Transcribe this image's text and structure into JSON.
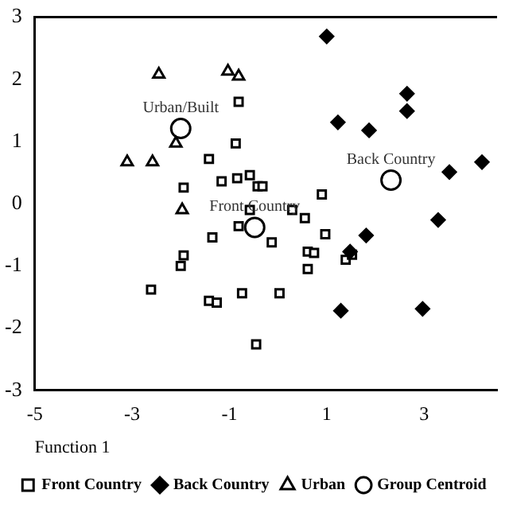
{
  "chart_data": {
    "type": "scatter",
    "xlabel": "Function 1",
    "xlim": [
      -5,
      4.5
    ],
    "xticks": [
      -5,
      -3,
      -1,
      1,
      3
    ],
    "ylim": [
      -3,
      3
    ],
    "yticks": [
      -3,
      -2,
      -1,
      0,
      1,
      2,
      3
    ],
    "grid": false,
    "legend": "bottom",
    "series": [
      {
        "name": "Front Country",
        "color": "#000000",
        "marker": "square",
        "x": [
          -1.42,
          -0.87,
          -0.81,
          -1.16,
          -0.84,
          -1.94,
          -0.81,
          -1.35,
          -1.94,
          -2.0,
          -2.61,
          -1.42,
          -1.26,
          -0.74,
          -0.58,
          -0.42,
          -0.32,
          0.9,
          -0.58,
          0.29,
          0.55,
          -0.13,
          0.97,
          0.61,
          0.74,
          1.39,
          1.52,
          0.61,
          0.03,
          -0.45
        ],
        "values": [
          0.72,
          0.97,
          1.64,
          0.36,
          0.41,
          0.26,
          -0.36,
          -0.54,
          -0.83,
          -1.0,
          -1.38,
          -1.56,
          -1.59,
          -1.44,
          0.46,
          0.28,
          0.28,
          0.15,
          -0.1,
          -0.1,
          -0.23,
          -0.62,
          -0.49,
          -0.77,
          -0.79,
          -0.9,
          -0.82,
          -1.05,
          -1.44,
          -2.26
        ]
      },
      {
        "name": "Back Country",
        "color": "#000000",
        "marker": "diamond",
        "x": [
          1.0,
          2.65,
          2.65,
          1.23,
          1.87,
          3.52,
          4.19,
          3.29,
          1.81,
          1.48,
          1.29,
          2.97
        ],
        "values": [
          2.69,
          1.77,
          1.49,
          1.31,
          1.18,
          0.51,
          0.67,
          -0.26,
          -0.51,
          -0.77,
          -1.72,
          -1.69
        ]
      },
      {
        "name": "Urban",
        "color": "#000000",
        "marker": "triangle",
        "x": [
          -2.45,
          -1.03,
          -0.81,
          -3.1,
          -2.58,
          -2.1,
          -1.97
        ],
        "values": [
          2.08,
          2.13,
          2.05,
          0.67,
          0.67,
          0.97,
          -0.1
        ]
      },
      {
        "name": "Group Centroid",
        "color": "#000000",
        "marker": "circle",
        "x": [
          -2.0,
          -0.48,
          2.32
        ],
        "values": [
          1.21,
          -0.38,
          0.38
        ]
      }
    ],
    "annotations": [
      {
        "text": "Urban/Built",
        "x": -2.0,
        "y": 1.21
      },
      {
        "text": "Front Country",
        "x": -0.48,
        "y": -0.38
      },
      {
        "text": "Back Country",
        "x": 2.32,
        "y": 0.38
      }
    ]
  }
}
